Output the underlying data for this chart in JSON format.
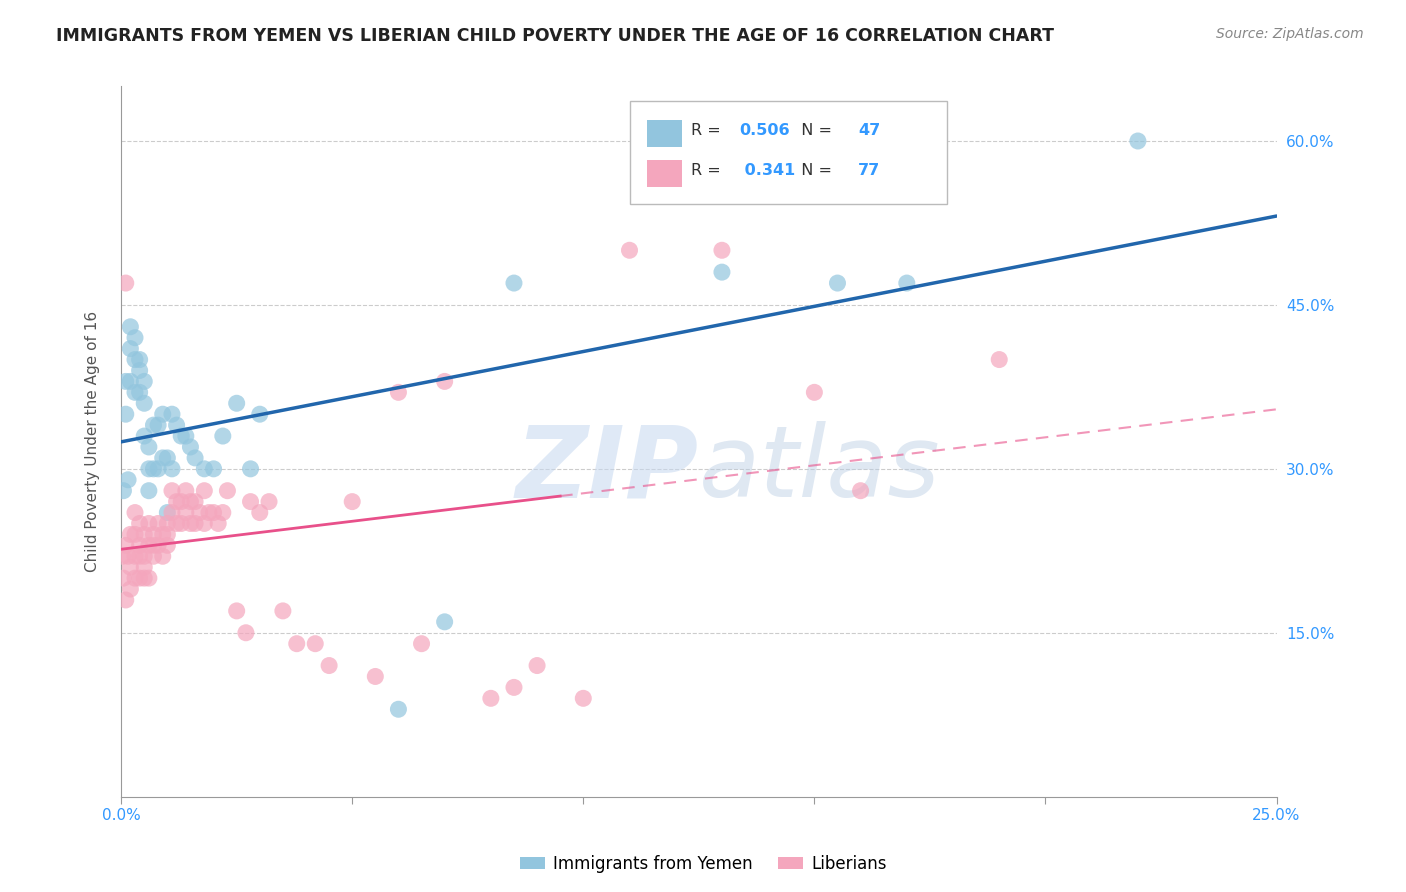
{
  "title": "IMMIGRANTS FROM YEMEN VS LIBERIAN CHILD POVERTY UNDER THE AGE OF 16 CORRELATION CHART",
  "source": "Source: ZipAtlas.com",
  "ylabel": "Child Poverty Under the Age of 16",
  "xlabel_blue": "Immigrants from Yemen",
  "xlabel_pink": "Liberians",
  "xlim": [
    0.0,
    0.25
  ],
  "ylim": [
    0.0,
    0.65
  ],
  "R_blue": 0.506,
  "N_blue": 47,
  "R_pink": 0.341,
  "N_pink": 77,
  "color_blue": "#92c5de",
  "color_pink": "#f4a6bd",
  "line_blue": "#2166ac",
  "line_pink": "#e8508a",
  "watermark_zip": "ZIP",
  "watermark_atlas": "atlas",
  "blue_points_x": [
    0.0005,
    0.001,
    0.001,
    0.0015,
    0.002,
    0.002,
    0.002,
    0.003,
    0.003,
    0.003,
    0.004,
    0.004,
    0.004,
    0.005,
    0.005,
    0.005,
    0.006,
    0.006,
    0.006,
    0.007,
    0.007,
    0.008,
    0.008,
    0.009,
    0.009,
    0.01,
    0.01,
    0.011,
    0.011,
    0.012,
    0.013,
    0.014,
    0.015,
    0.016,
    0.018,
    0.02,
    0.022,
    0.025,
    0.028,
    0.03,
    0.06,
    0.07,
    0.085,
    0.13,
    0.155,
    0.17,
    0.22
  ],
  "blue_points_y": [
    0.28,
    0.35,
    0.38,
    0.29,
    0.38,
    0.41,
    0.43,
    0.37,
    0.4,
    0.42,
    0.37,
    0.39,
    0.4,
    0.33,
    0.36,
    0.38,
    0.28,
    0.3,
    0.32,
    0.3,
    0.34,
    0.3,
    0.34,
    0.31,
    0.35,
    0.26,
    0.31,
    0.3,
    0.35,
    0.34,
    0.33,
    0.33,
    0.32,
    0.31,
    0.3,
    0.3,
    0.33,
    0.36,
    0.3,
    0.35,
    0.08,
    0.16,
    0.47,
    0.48,
    0.47,
    0.47,
    0.6
  ],
  "pink_points_x": [
    0.0003,
    0.0005,
    0.001,
    0.001,
    0.001,
    0.0015,
    0.002,
    0.002,
    0.002,
    0.003,
    0.003,
    0.003,
    0.003,
    0.004,
    0.004,
    0.004,
    0.004,
    0.005,
    0.005,
    0.005,
    0.005,
    0.006,
    0.006,
    0.006,
    0.007,
    0.007,
    0.007,
    0.008,
    0.008,
    0.009,
    0.009,
    0.01,
    0.01,
    0.01,
    0.011,
    0.011,
    0.012,
    0.012,
    0.013,
    0.013,
    0.014,
    0.014,
    0.015,
    0.015,
    0.016,
    0.016,
    0.017,
    0.018,
    0.018,
    0.019,
    0.02,
    0.021,
    0.022,
    0.023,
    0.025,
    0.027,
    0.028,
    0.03,
    0.032,
    0.035,
    0.038,
    0.042,
    0.045,
    0.05,
    0.055,
    0.06,
    0.065,
    0.07,
    0.08,
    0.085,
    0.09,
    0.1,
    0.11,
    0.13,
    0.15,
    0.16,
    0.19
  ],
  "pink_points_y": [
    0.22,
    0.2,
    0.23,
    0.18,
    0.47,
    0.22,
    0.21,
    0.24,
    0.19,
    0.22,
    0.24,
    0.26,
    0.2,
    0.22,
    0.23,
    0.25,
    0.2,
    0.22,
    0.24,
    0.21,
    0.2,
    0.23,
    0.25,
    0.2,
    0.23,
    0.22,
    0.24,
    0.23,
    0.25,
    0.22,
    0.24,
    0.23,
    0.25,
    0.24,
    0.26,
    0.28,
    0.25,
    0.27,
    0.25,
    0.27,
    0.26,
    0.28,
    0.25,
    0.27,
    0.25,
    0.27,
    0.26,
    0.25,
    0.28,
    0.26,
    0.26,
    0.25,
    0.26,
    0.28,
    0.17,
    0.15,
    0.27,
    0.26,
    0.27,
    0.17,
    0.14,
    0.14,
    0.12,
    0.27,
    0.11,
    0.37,
    0.14,
    0.38,
    0.09,
    0.1,
    0.12,
    0.09,
    0.5,
    0.5,
    0.37,
    0.28,
    0.4
  ]
}
